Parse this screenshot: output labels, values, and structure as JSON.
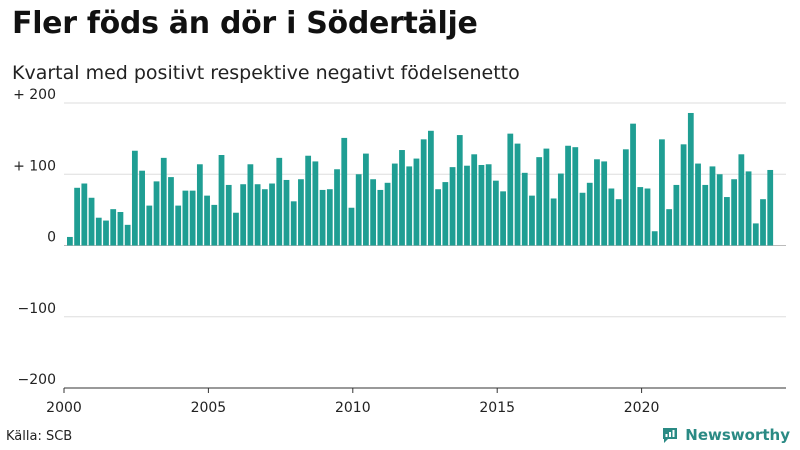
{
  "title": "Fler föds än dör i Södertälje",
  "subtitle": "Kvartal med positivt respektive negativt födelsenetto",
  "source": "Källa: SCB",
  "brand": "Newsworthy",
  "colors": {
    "bar": "#1f9e93",
    "grid": "#dddddd",
    "axis": "#333333",
    "brand": "#2a8a84"
  },
  "chart_data": {
    "type": "bar",
    "title": "Fler föds än dör i Södertälje",
    "subtitle": "Kvartal med positivt respektive negativt födelsenetto",
    "xlabel": "",
    "ylabel": "",
    "ylim": [
      -200,
      200
    ],
    "grid": true,
    "x_start": 2000,
    "x_end": 2025,
    "y_ticks": [
      {
        "value": 200,
        "label": "+ 200"
      },
      {
        "value": 100,
        "label": "+ 100"
      },
      {
        "value": 0,
        "label": "0"
      },
      {
        "value": -100,
        "label": "−100"
      },
      {
        "value": -200,
        "label": "−200"
      }
    ],
    "x_ticks": [
      {
        "value": 2000,
        "label": "2000"
      },
      {
        "value": 2005,
        "label": "2005"
      },
      {
        "value": 2010,
        "label": "2010"
      },
      {
        "value": 2015,
        "label": "2015"
      },
      {
        "value": 2020,
        "label": "2020"
      }
    ],
    "series": [
      {
        "name": "Födelsenetto per kvartal",
        "values": [
          12,
          81,
          87,
          67,
          39,
          35,
          51,
          47,
          29,
          133,
          105,
          56,
          90,
          123,
          96,
          56,
          77,
          77,
          114,
          70,
          57,
          127,
          85,
          46,
          86,
          114,
          86,
          79,
          87,
          123,
          92,
          62,
          93,
          126,
          118,
          78,
          79,
          107,
          151,
          53,
          100,
          129,
          93,
          78,
          88,
          115,
          134,
          111,
          122,
          149,
          161,
          79,
          89,
          110,
          155,
          112,
          128,
          113,
          114,
          91,
          76,
          157,
          143,
          102,
          70,
          124,
          136,
          66,
          101,
          140,
          138,
          74,
          88,
          121,
          118,
          80,
          65,
          135,
          171,
          82,
          80,
          20,
          149,
          51,
          85,
          142,
          186,
          115,
          85,
          111,
          100,
          68,
          93,
          128,
          104,
          31,
          65,
          106
        ]
      }
    ]
  }
}
